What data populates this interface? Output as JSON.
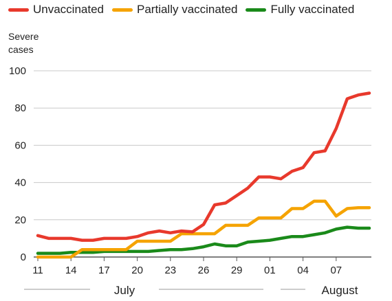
{
  "chart_data": {
    "type": "line",
    "ylabel": "Severe\ncases",
    "ylim": [
      0,
      100
    ],
    "yticks": [
      0,
      20,
      40,
      60,
      80,
      100
    ],
    "grid": true,
    "legend_position": "top",
    "x": [
      0,
      1,
      2,
      3,
      4,
      5,
      6,
      7,
      8,
      9,
      10,
      11,
      12,
      13,
      14,
      15,
      16,
      17,
      18,
      19,
      20,
      21,
      22,
      23,
      24,
      25,
      26,
      27,
      28,
      29,
      30
    ],
    "xlim": [
      0,
      30
    ],
    "xticks": [
      {
        "x": 0,
        "label": "11"
      },
      {
        "x": 3,
        "label": "14"
      },
      {
        "x": 6,
        "label": "17"
      },
      {
        "x": 9,
        "label": "20"
      },
      {
        "x": 12,
        "label": "23"
      },
      {
        "x": 15,
        "label": "26"
      },
      {
        "x": 18,
        "label": "29"
      },
      {
        "x": 21,
        "label": "01"
      },
      {
        "x": 24,
        "label": "04"
      },
      {
        "x": 27,
        "label": "07"
      }
    ],
    "month_labels": [
      {
        "label": "July",
        "from": 0,
        "to": 20
      },
      {
        "label": "August",
        "from": 21,
        "to": 30
      }
    ],
    "series": [
      {
        "name": "Unvaccinated",
        "color": "#e8392c",
        "values": [
          11.5,
          10,
          10,
          10,
          9,
          9,
          10,
          10,
          10,
          11,
          13,
          14,
          13,
          14,
          13.5,
          17.5,
          28,
          29,
          33,
          37,
          43,
          43,
          42,
          46,
          48,
          56,
          57,
          69,
          85,
          87,
          88
        ]
      },
      {
        "name": "Partially vaccinated",
        "color": "#f5a300",
        "values": [
          0,
          0,
          0,
          0,
          4,
          4,
          4,
          4,
          4,
          8.5,
          8.5,
          8.5,
          8.5,
          12.5,
          12.5,
          12.5,
          12.5,
          17,
          17,
          17,
          21,
          21,
          21,
          26,
          26,
          30,
          30,
          22,
          26,
          26.5,
          26.5
        ]
      },
      {
        "name": "Fully vaccinated",
        "color": "#1a8a1a",
        "values": [
          2,
          2,
          2,
          2.5,
          2.5,
          2.5,
          3,
          3,
          3,
          3,
          3,
          3.5,
          4,
          4,
          4.5,
          5.5,
          7,
          6,
          6,
          8,
          8.5,
          9,
          10,
          11,
          11,
          12,
          13,
          15,
          16,
          15.5,
          15.5
        ]
      }
    ]
  }
}
